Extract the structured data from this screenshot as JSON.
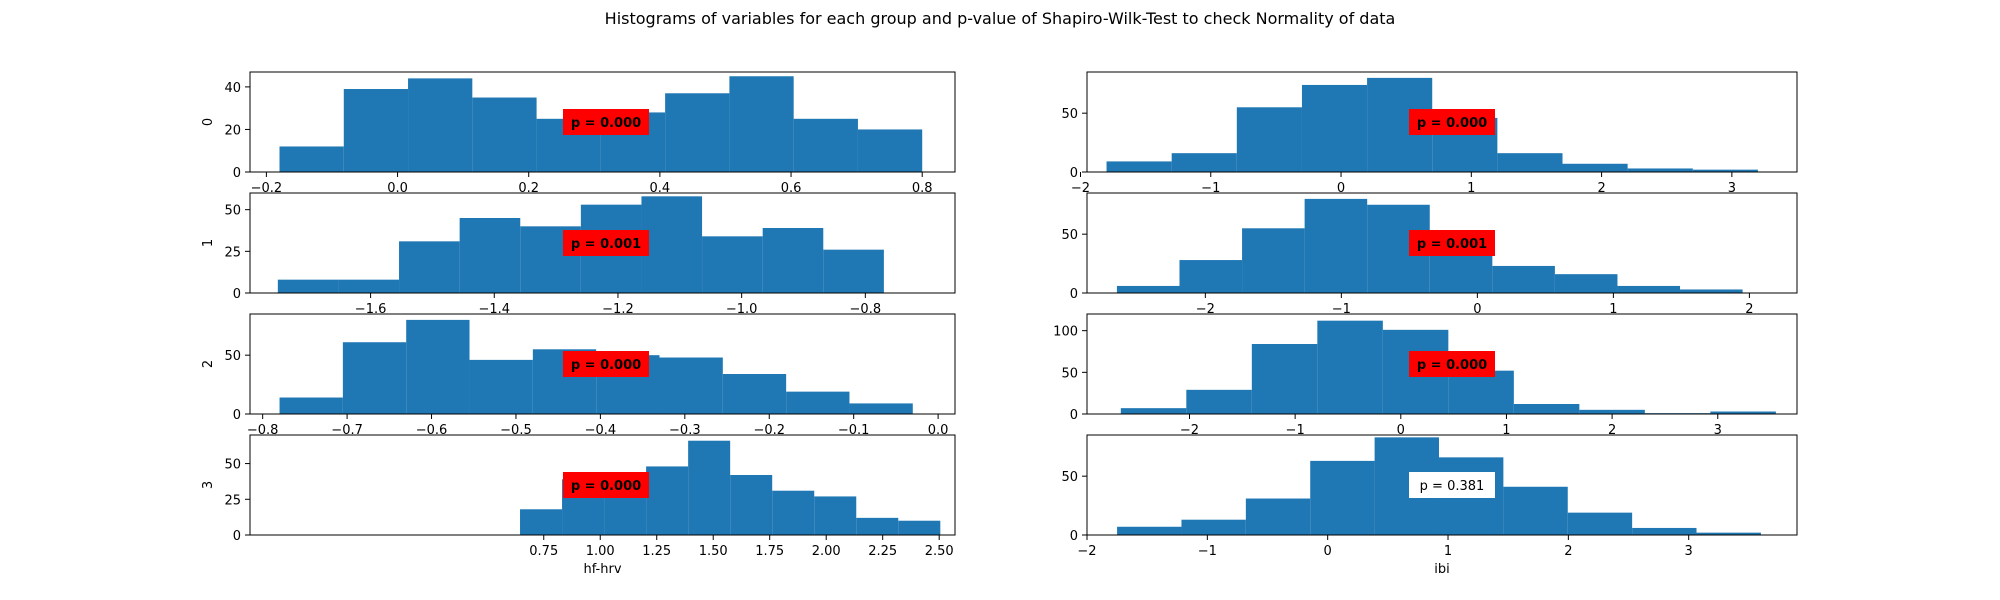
{
  "title": "Histograms of variables for each group and p-value of Shapiro-Wilk-Test to check Normality of data",
  "colors": {
    "bar": "#1f77b4",
    "pbox_significant": "#ff0000",
    "pbox_ns": "#ffffff"
  },
  "chart_data": [
    {
      "type": "bar",
      "group": "0",
      "variable": "hf-hrv",
      "ylabel": "0",
      "xlabel": "",
      "xlim": [
        -0.225,
        0.85
      ],
      "ylim": [
        0,
        47
      ],
      "xticks": [
        -0.2,
        0.0,
        0.2,
        0.4,
        0.6,
        0.8
      ],
      "xtick_labels": [
        "−0.2",
        "0.0",
        "0.2",
        "0.4",
        "0.6",
        "0.8"
      ],
      "yticks": [
        0,
        20,
        40
      ],
      "ytick_labels": [
        "0",
        "20",
        "40"
      ],
      "bin_edges": [
        -0.18,
        -0.082,
        0.016,
        0.114,
        0.212,
        0.31,
        0.408,
        0.506,
        0.604,
        0.702,
        0.8
      ],
      "counts": [
        12,
        39,
        44,
        35,
        25,
        28,
        37,
        45,
        25,
        20
      ],
      "p_label": "p = 0.000",
      "significant": true
    },
    {
      "type": "bar",
      "group": "0",
      "variable": "ibi",
      "ylabel": "",
      "xlabel": "",
      "xlim": [
        -1.95,
        3.5
      ],
      "ylim": [
        0,
        85
      ],
      "xticks": [
        -2,
        -1,
        0,
        1,
        2,
        3
      ],
      "xtick_labels": [
        "−2",
        "−1",
        "0",
        "1",
        "2",
        "3"
      ],
      "yticks": [
        0,
        50
      ],
      "ytick_labels": [
        "0",
        "50"
      ],
      "bin_edges": [
        -1.8,
        -1.3,
        -0.8,
        -0.3,
        0.2,
        0.7,
        1.2,
        1.7,
        2.2,
        2.7,
        3.2
      ],
      "counts": [
        9,
        16,
        55,
        74,
        80,
        46,
        16,
        7,
        3,
        2
      ],
      "p_label": "p = 0.000",
      "significant": true
    },
    {
      "type": "bar",
      "group": "1",
      "variable": "hf-hrv",
      "ylabel": "1",
      "xlabel": "",
      "xlim": [
        -1.795,
        -0.655
      ],
      "ylim": [
        0,
        60
      ],
      "xticks": [
        -1.6,
        -1.4,
        -1.2,
        -1.0,
        -0.8
      ],
      "xtick_labels": [
        "−1.6",
        "−1.4",
        "−1.2",
        "−1.0",
        "−0.8"
      ],
      "yticks": [
        0,
        25,
        50
      ],
      "ytick_labels": [
        "0",
        "25",
        "50"
      ],
      "bin_edges": [
        -1.75,
        -1.652,
        -1.554,
        -1.456,
        -1.358,
        -1.26,
        -1.162,
        -1.064,
        -0.966,
        -0.868,
        -0.77
      ],
      "counts": [
        8,
        8,
        31,
        45,
        40,
        53,
        58,
        34,
        39,
        26
      ],
      "p_label": "p = 0.001",
      "significant": true
    },
    {
      "type": "bar",
      "group": "1",
      "variable": "ibi",
      "ylabel": "",
      "xlabel": "",
      "xlim": [
        -2.87,
        2.35
      ],
      "ylim": [
        0,
        85
      ],
      "xticks": [
        -2,
        -1,
        0,
        1,
        2
      ],
      "xtick_labels": [
        "−2",
        "−1",
        "0",
        "1",
        "2"
      ],
      "yticks": [
        0,
        50
      ],
      "ytick_labels": [
        "0",
        "50"
      ],
      "bin_edges": [
        -2.65,
        -2.19,
        -1.73,
        -1.27,
        -0.81,
        -0.35,
        0.11,
        0.57,
        1.03,
        1.49,
        1.95
      ],
      "counts": [
        6,
        28,
        55,
        80,
        75,
        48,
        23,
        16,
        6,
        3
      ],
      "p_label": "p = 0.001",
      "significant": true
    },
    {
      "type": "bar",
      "group": "2",
      "variable": "hf-hrv",
      "ylabel": "2",
      "xlabel": "",
      "xlim": [
        -0.815,
        0.02
      ],
      "ylim": [
        0,
        85
      ],
      "xticks": [
        -0.8,
        -0.7,
        -0.6,
        -0.5,
        -0.4,
        -0.3,
        -0.2,
        -0.1,
        0.0
      ],
      "xtick_labels": [
        "−0.8",
        "−0.7",
        "−0.6",
        "−0.5",
        "−0.4",
        "−0.3",
        "−0.2",
        "−0.1",
        "0.0"
      ],
      "yticks": [
        0,
        50
      ],
      "ytick_labels": [
        "0",
        "50"
      ],
      "bin_edges": [
        -0.78,
        -0.705,
        -0.63,
        -0.555,
        -0.48,
        -0.405,
        -0.33,
        -0.255,
        -0.18,
        -0.105,
        -0.03
      ],
      "counts": [
        14,
        61,
        80,
        46,
        55,
        50,
        48,
        34,
        19,
        9
      ],
      "p_label": "p = 0.000",
      "significant": true
    },
    {
      "type": "bar",
      "group": "2",
      "variable": "ibi",
      "ylabel": "",
      "xlabel": "",
      "xlim": [
        -2.97,
        3.75
      ],
      "ylim": [
        0,
        120
      ],
      "xticks": [
        -2,
        -1,
        0,
        1,
        2,
        3
      ],
      "xtick_labels": [
        "−2",
        "−1",
        "0",
        "1",
        "2",
        "3"
      ],
      "yticks": [
        0,
        50,
        100
      ],
      "ytick_labels": [
        "0",
        "50",
        "100"
      ],
      "bin_edges": [
        -2.65,
        -2.03,
        -1.41,
        -0.79,
        -0.17,
        0.45,
        1.07,
        1.69,
        2.31,
        2.93,
        3.55
      ],
      "counts": [
        7,
        29,
        84,
        112,
        101,
        52,
        12,
        5,
        1,
        3
      ],
      "p_label": "p = 0.000",
      "significant": true
    },
    {
      "type": "bar",
      "group": "3",
      "variable": "hf-hrv",
      "ylabel": "3",
      "xlabel": "hf-hrv",
      "xlim": [
        -0.55,
        2.57
      ],
      "ylim": [
        0,
        70
      ],
      "xticks": [
        0.75,
        1.0,
        1.25,
        1.5,
        1.75,
        2.0,
        2.25,
        2.5
      ],
      "xtick_labels": [
        "0.75",
        "1.00",
        "1.25",
        "1.50",
        "1.75",
        "2.00",
        "2.25",
        "2.50"
      ],
      "yticks": [
        0,
        25,
        50
      ],
      "ytick_labels": [
        "0",
        "25",
        "50"
      ],
      "bin_edges": [
        0.645,
        0.831,
        1.017,
        1.203,
        1.389,
        1.575,
        1.761,
        1.947,
        2.133,
        2.319,
        2.505
      ],
      "counts": [
        18,
        39,
        39,
        48,
        66,
        42,
        31,
        27,
        12,
        10
      ],
      "p_label": "p = 0.000",
      "significant": true
    },
    {
      "type": "bar",
      "group": "3",
      "variable": "ibi",
      "ylabel": "",
      "xlabel": "ibi",
      "xlim": [
        -2.0,
        3.9
      ],
      "ylim": [
        0,
        85
      ],
      "xticks": [
        -2,
        -1,
        0,
        1,
        2,
        3
      ],
      "xtick_labels": [
        "−2",
        "−1",
        "0",
        "1",
        "2",
        "3"
      ],
      "yticks": [
        0,
        50
      ],
      "ytick_labels": [
        "0",
        "50"
      ],
      "bin_edges": [
        -1.75,
        -1.215,
        -0.68,
        -0.145,
        0.39,
        0.925,
        1.46,
        1.995,
        2.53,
        3.065,
        3.6
      ],
      "counts": [
        7,
        13,
        31,
        63,
        83,
        66,
        41,
        19,
        6,
        2
      ],
      "p_label": "p = 0.381",
      "significant": false
    }
  ]
}
